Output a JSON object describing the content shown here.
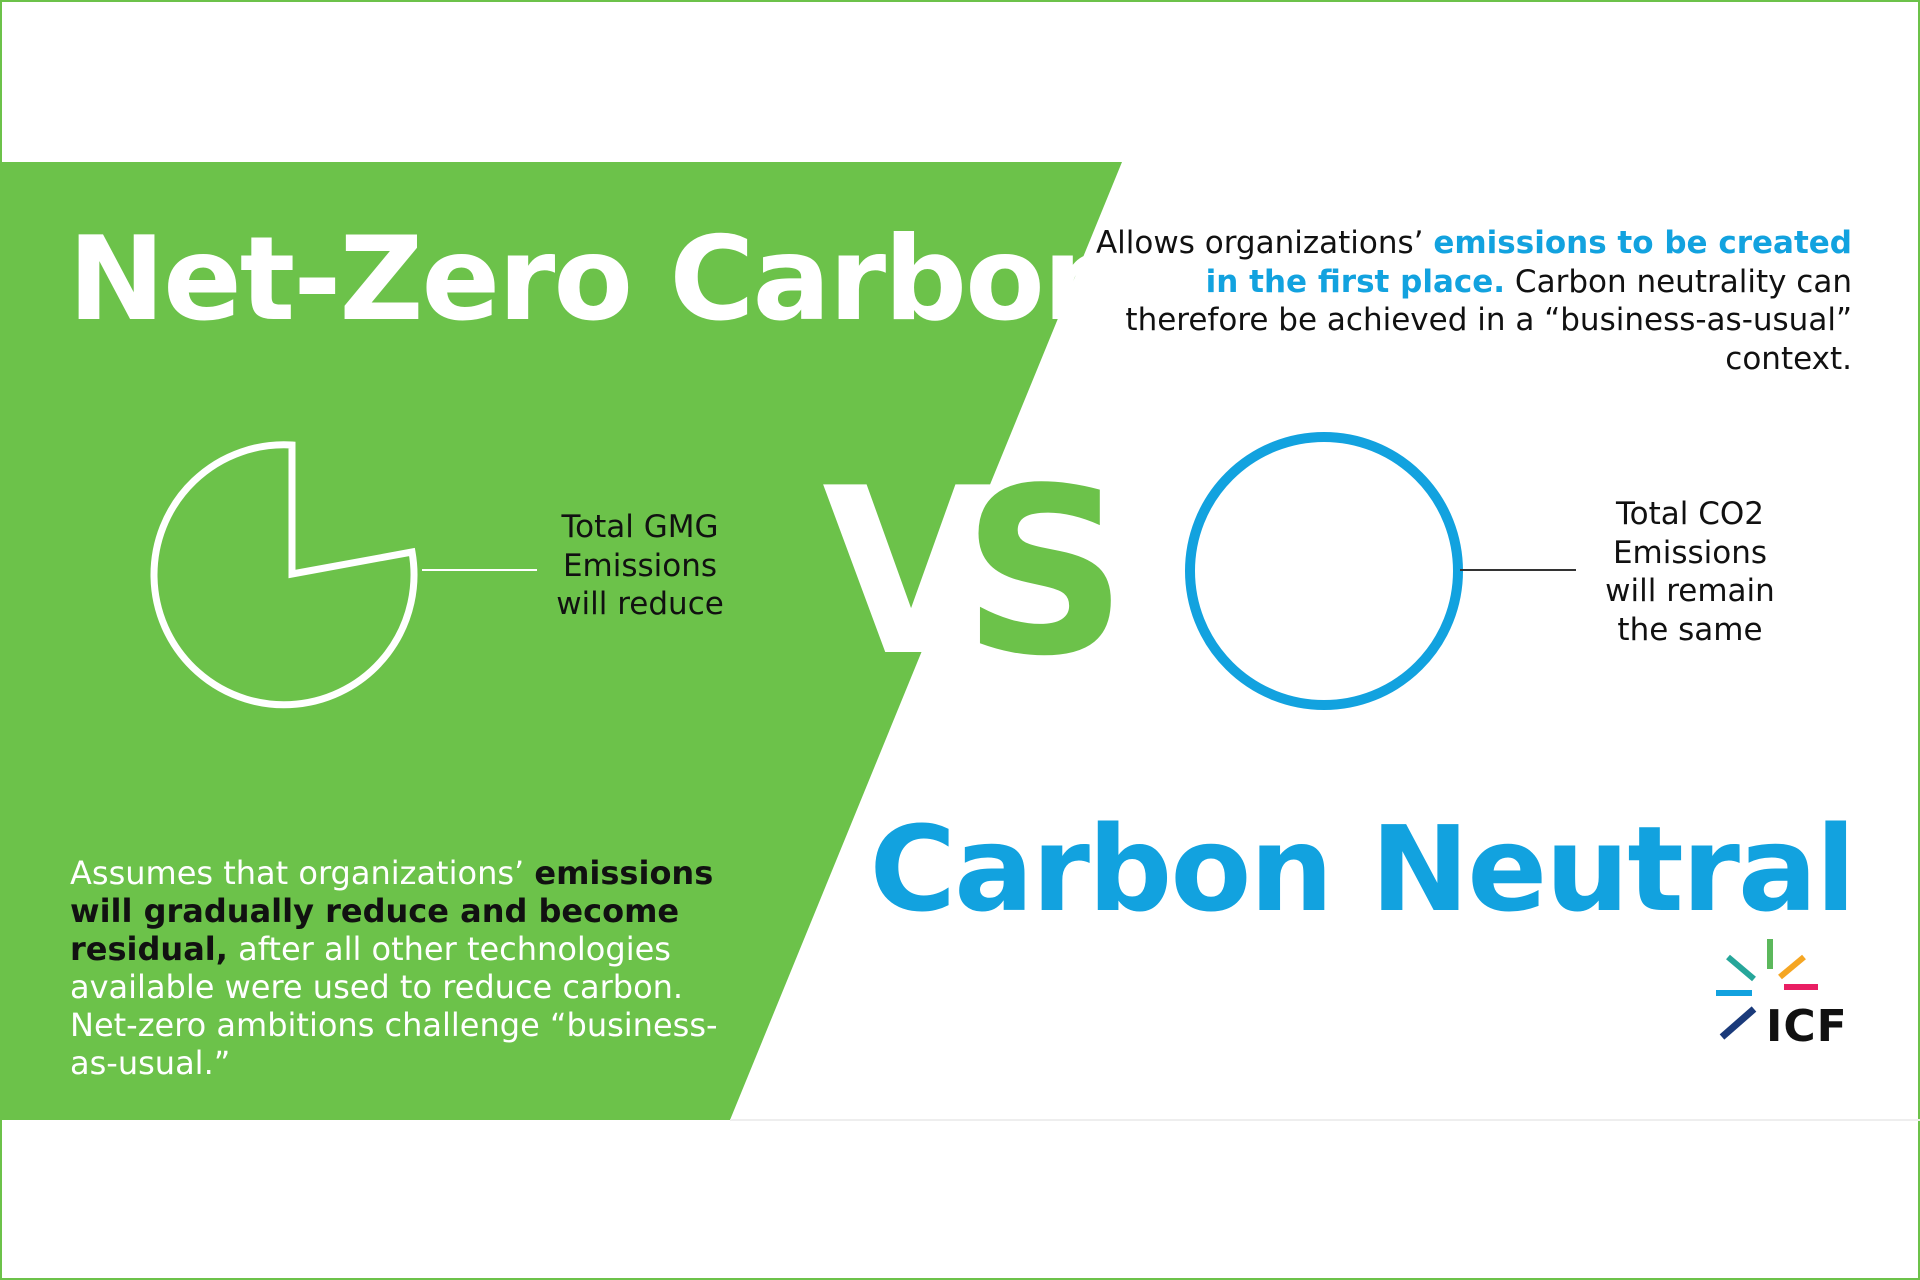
{
  "left": {
    "title": "Net-Zero Carbon",
    "metric_label_lines": [
      "Total GMG",
      "Emissions",
      "will reduce"
    ],
    "desc_part1": "Assumes that organizations’ ",
    "desc_bold": "emissions will gradually reduce and become residual,",
    "desc_part2": " after all other technologies available were used to reduce carbon. Net-zero ambitions challenge “business-as-usual.”"
  },
  "vs_text": "VS",
  "right": {
    "title": "Carbon Neutral",
    "metric_label_lines": [
      "Total CO2",
      "Emissions",
      "will remain",
      "the same"
    ],
    "desc_part1": "Allows organizations’ ",
    "desc_bold": "emissions to be created in the first place.",
    "desc_part2": " Carbon neutrality can therefore be achieved in a “business-as-usual” context."
  },
  "logo": {
    "text": "ICF"
  },
  "colors": {
    "green": "#6cc24a",
    "blue": "#12a2df",
    "dark": "#111111",
    "white": "#ffffff"
  }
}
